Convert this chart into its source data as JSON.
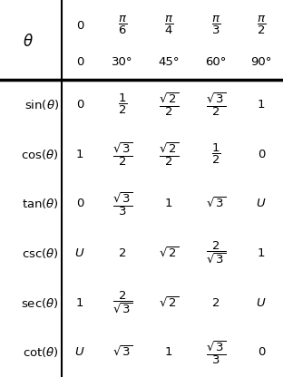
{
  "background": "#ffffff",
  "fig_width": 3.12,
  "fig_height": 4.16,
  "dpi": 100,
  "rows": [
    [
      "$\\sin(\\theta)$",
      "0",
      "$\\dfrac{1}{2}$",
      "$\\dfrac{\\sqrt{2}}{2}$",
      "$\\dfrac{\\sqrt{3}}{2}$",
      "1"
    ],
    [
      "$\\cos(\\theta)$",
      "1",
      "$\\dfrac{\\sqrt{3}}{2}$",
      "$\\dfrac{\\sqrt{2}}{2}$",
      "$\\dfrac{1}{2}$",
      "0"
    ],
    [
      "$\\tan(\\theta)$",
      "0",
      "$\\dfrac{\\sqrt{3}}{3}$",
      "1",
      "$\\sqrt{3}$",
      "$\\mathit{U}$"
    ],
    [
      "$\\csc(\\theta)$",
      "$\\mathit{U}$",
      "2",
      "$\\sqrt{2}$",
      "$\\dfrac{2}{\\sqrt{3}}$",
      "1"
    ],
    [
      "$\\sec(\\theta)$",
      "1",
      "$\\dfrac{2}{\\sqrt{3}}$",
      "$\\sqrt{2}$",
      "2",
      "$\\mathit{U}$"
    ],
    [
      "$\\cot(\\theta)$",
      "$\\mathit{U}$",
      "$\\sqrt{3}$",
      "1",
      "$\\dfrac{\\sqrt{3}}{3}$",
      "0"
    ]
  ]
}
